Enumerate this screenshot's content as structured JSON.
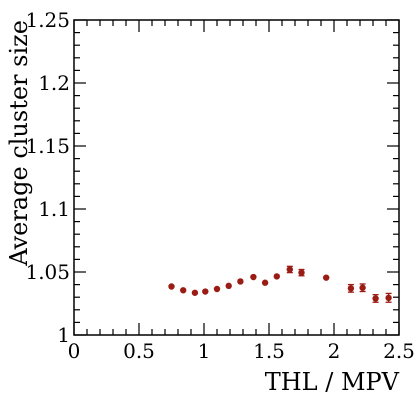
{
  "chart_data": {
    "type": "scatter",
    "title": "",
    "xlabel": "THL / MPV",
    "ylabel": "Average cluster size",
    "xlim": [
      0,
      2.5
    ],
    "ylim": [
      1,
      1.25
    ],
    "xticks": [
      "0",
      "0.5",
      "1",
      "1.5",
      "2",
      "2.5"
    ],
    "yticks": [
      "1",
      "1.05",
      "1.1",
      "1.15",
      "1.2",
      "1.25"
    ],
    "grid": false,
    "marker_color": "#9b1c14",
    "series": [
      {
        "x": [
          0.75,
          0.84,
          0.93,
          1.01,
          1.1,
          1.19,
          1.28,
          1.38,
          1.47,
          1.56,
          1.66,
          1.75,
          1.94,
          2.13,
          2.22,
          2.32,
          2.42
        ],
        "y": [
          1.0385,
          1.0355,
          1.0335,
          1.0345,
          1.0365,
          1.039,
          1.0425,
          1.046,
          1.0415,
          1.0465,
          1.052,
          1.0495,
          1.0455,
          1.037,
          1.0375,
          1.029,
          1.0295
        ],
        "yerr": [
          0.001,
          0.001,
          0.001,
          0.001,
          0.001,
          0.001,
          0.001,
          0.0012,
          0.0012,
          0.0015,
          0.0025,
          0.0025,
          0.0015,
          0.003,
          0.003,
          0.003,
          0.0035
        ]
      }
    ]
  }
}
